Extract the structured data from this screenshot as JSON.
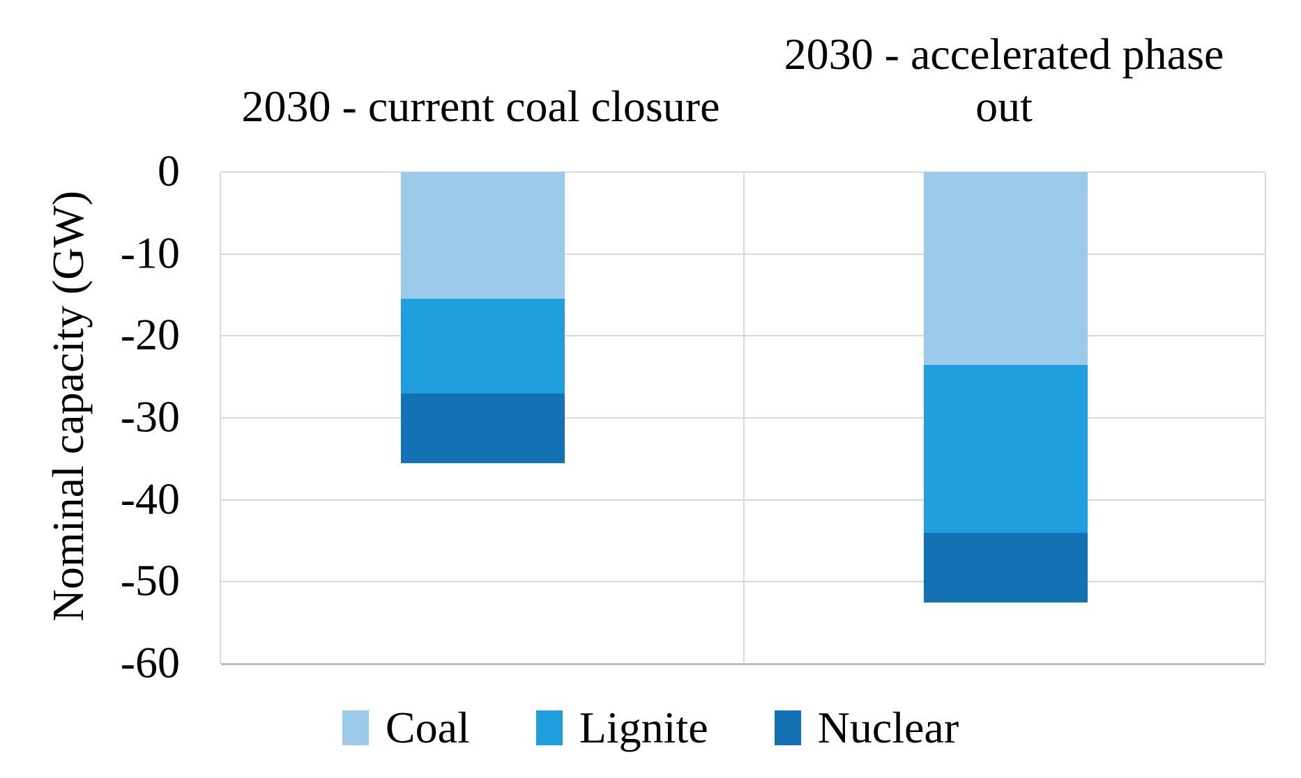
{
  "chart_data": {
    "type": "bar",
    "stacked": true,
    "orientation": "vertical",
    "title": "",
    "categories": [
      "2030 - current coal closure",
      "2030 - accelerated phase out"
    ],
    "series": [
      {
        "name": "Coal",
        "color": "#9CCAEB",
        "values": [
          -15.5,
          -23.5
        ]
      },
      {
        "name": "Lignite",
        "color": "#1F9FDD",
        "values": [
          -11.5,
          -20.5
        ]
      },
      {
        "name": "Nuclear",
        "color": "#1272B4",
        "values": [
          -8.5,
          -8.5
        ]
      }
    ],
    "totals": [
      -35.5,
      -52.5
    ],
    "xlabel": "",
    "ylabel": "Nominal capacity (GW)",
    "ylim": [
      -60,
      0
    ],
    "yticks": [
      0,
      -10,
      -20,
      -30,
      -40,
      -50,
      -60
    ],
    "ytick_labels": [
      "0",
      "-10",
      "-20",
      "-30",
      "-40",
      "-50",
      "-60"
    ],
    "grid": true,
    "legend_position": "bottom"
  },
  "colors": {
    "background": "#FFFFFF",
    "gridline": "#D9D9D9",
    "axis_line": "#BFBFBF",
    "text": "#000000"
  }
}
